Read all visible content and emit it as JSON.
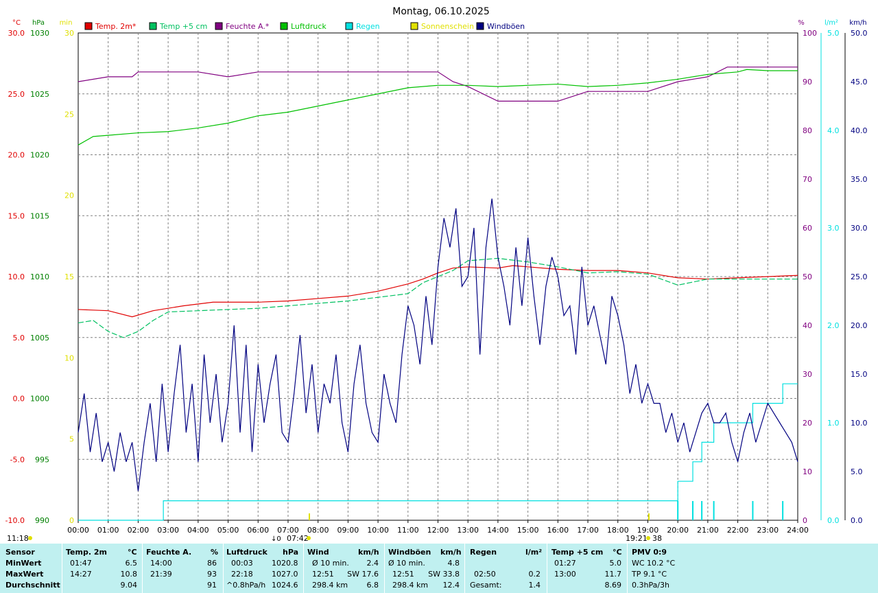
{
  "chart_data": {
    "type": "line",
    "title": "Montag, 06.10.2025",
    "x_ticks": [
      "00:00",
      "01:00",
      "02:00",
      "03:00",
      "04:00",
      "05:00",
      "06:00",
      "07:00",
      "08:00",
      "09:00",
      "10:00",
      "11:00",
      "12:00",
      "13:00",
      "14:00",
      "15:00",
      "16:00",
      "17:00",
      "18:00",
      "19:00",
      "20:00",
      "21:00",
      "22:00",
      "23:00",
      "24:00"
    ],
    "axes": {
      "temp": {
        "unit": "°C",
        "ticks": [
          "30.0",
          "25.0",
          "20.0",
          "15.0",
          "10.0",
          "5.0",
          "0.0",
          "-5.0",
          "-10.0"
        ],
        "ylim": [
          -10,
          30
        ],
        "color": "#e00000"
      },
      "pressure": {
        "unit": "hPa",
        "ticks": [
          "1030",
          "1025",
          "1020",
          "1015",
          "1010",
          "1005",
          "1000",
          "995",
          "990"
        ],
        "ylim": [
          990,
          1030
        ],
        "color": "#008000"
      },
      "sun": {
        "unit": "min",
        "ticks": [
          "30",
          "25",
          "20",
          "15",
          "10",
          "5",
          "0"
        ],
        "ylim": [
          0,
          30
        ],
        "color": "#e0e000"
      },
      "humidity": {
        "unit": "%",
        "ticks": [
          "100",
          "90",
          "80",
          "70",
          "60",
          "50",
          "40",
          "30",
          "20",
          "10",
          "0"
        ],
        "ylim": [
          0,
          100
        ],
        "color": "#800080"
      },
      "rain": {
        "unit": "l/m²",
        "ticks": [
          "5.0",
          "4.0",
          "3.0",
          "2.0",
          "1.0",
          "0.0"
        ],
        "ylim": [
          0,
          5
        ],
        "color": "#00e0e0"
      },
      "wind": {
        "unit": "km/h",
        "ticks": [
          "50.0",
          "45.0",
          "40.0",
          "35.0",
          "30.0",
          "25.0",
          "20.0",
          "15.0",
          "10.0",
          "5.0",
          "0.0"
        ],
        "ylim": [
          0,
          50
        ],
        "color": "#000080"
      }
    },
    "series": [
      {
        "name": "Temp. 2m*",
        "color": "#e00000",
        "axis": "temp",
        "x": [
          0,
          1,
          1.8,
          2.5,
          3.5,
          4.5,
          6,
          7,
          8,
          9,
          10,
          11,
          11.5,
          12,
          12.5,
          13,
          14,
          14.5,
          15,
          16,
          17,
          18,
          18.5,
          19,
          20,
          21,
          22,
          23,
          24
        ],
        "y": [
          7.3,
          7.2,
          6.7,
          7.2,
          7.6,
          7.9,
          7.9,
          8.0,
          8.2,
          8.4,
          8.8,
          9.4,
          9.8,
          10.3,
          10.7,
          10.8,
          10.7,
          10.9,
          10.8,
          10.6,
          10.5,
          10.5,
          10.4,
          10.3,
          9.9,
          9.8,
          9.9,
          10.0,
          10.1
        ]
      },
      {
        "name": "Temp +5 cm",
        "color": "#00c060",
        "axis": "temp",
        "x": [
          0,
          0.5,
          1,
          1.5,
          2,
          2.5,
          3,
          4,
          5,
          6,
          7,
          8,
          9,
          10,
          11,
          11.5,
          12,
          12.5,
          13,
          14,
          15,
          16,
          17,
          18,
          19,
          20,
          21,
          22,
          23,
          24
        ],
        "y": [
          6.2,
          6.4,
          5.5,
          5.0,
          5.5,
          6.4,
          7.1,
          7.2,
          7.3,
          7.4,
          7.6,
          7.8,
          8.0,
          8.3,
          8.6,
          9.5,
          10.0,
          10.5,
          11.3,
          11.5,
          11.2,
          10.8,
          10.3,
          10.4,
          10.2,
          9.3,
          9.8,
          9.8,
          9.8,
          9.8
        ]
      },
      {
        "name": "Feuchte A.*",
        "color": "#800080",
        "axis": "humidity",
        "x": [
          0,
          1,
          1.8,
          2,
          4,
          5,
          6,
          7,
          8,
          9,
          10,
          11,
          12,
          12.5,
          13,
          14,
          15,
          16,
          17,
          18,
          18.5,
          19,
          20,
          21,
          21.65,
          22,
          23,
          24
        ],
        "y": [
          90,
          91,
          91,
          92,
          92,
          91,
          92,
          92,
          92,
          92,
          92,
          92,
          92,
          90,
          89,
          86,
          86,
          86,
          88,
          88,
          88,
          88,
          90,
          91,
          93,
          93,
          93,
          93
        ]
      },
      {
        "name": "Luftdruck",
        "color": "#00c000",
        "axis": "pressure",
        "x": [
          0,
          0.5,
          1,
          2,
          3,
          4,
          5,
          6,
          7,
          8,
          9,
          10,
          11,
          12,
          13,
          14,
          15,
          16,
          17,
          18,
          19,
          20,
          21,
          22,
          22.3,
          23,
          24
        ],
        "y": [
          1020.8,
          1021.5,
          1021.6,
          1021.8,
          1021.9,
          1022.2,
          1022.6,
          1023.2,
          1023.5,
          1024.0,
          1024.5,
          1025.0,
          1025.5,
          1025.7,
          1025.7,
          1025.6,
          1025.7,
          1025.8,
          1025.6,
          1025.7,
          1025.9,
          1026.2,
          1026.6,
          1026.8,
          1027.0,
          1026.9,
          1026.9
        ]
      },
      {
        "name": "Regen",
        "color": "#00e0e0",
        "axis": "rain",
        "x": [
          0,
          2.83,
          2.84,
          19.99,
          20,
          20.5,
          20.8,
          21.2,
          22.5,
          23.5,
          24
        ],
        "y": [
          0,
          0,
          0.2,
          0.2,
          0.4,
          0.6,
          0.8,
          1.0,
          1.2,
          1.4,
          1.4
        ]
      },
      {
        "name": "Sonnenschein",
        "color": "#e0e000",
        "axis": "sun",
        "x": [],
        "y": []
      },
      {
        "name": "Windböen",
        "color": "#000080",
        "axis": "wind",
        "x": [
          0,
          0.2,
          0.4,
          0.6,
          0.8,
          1.0,
          1.2,
          1.4,
          1.6,
          1.8,
          2.0,
          2.2,
          2.4,
          2.6,
          2.8,
          3.0,
          3.2,
          3.4,
          3.6,
          3.8,
          4.0,
          4.2,
          4.4,
          4.6,
          4.8,
          5.0,
          5.2,
          5.4,
          5.6,
          5.8,
          6.0,
          6.2,
          6.4,
          6.6,
          6.8,
          7.0,
          7.2,
          7.4,
          7.6,
          7.8,
          8.0,
          8.2,
          8.4,
          8.6,
          8.8,
          9.0,
          9.2,
          9.4,
          9.6,
          9.8,
          10.0,
          10.2,
          10.4,
          10.6,
          10.8,
          11.0,
          11.2,
          11.4,
          11.6,
          11.8,
          12.0,
          12.2,
          12.4,
          12.6,
          12.8,
          13.0,
          13.2,
          13.4,
          13.6,
          13.8,
          14.0,
          14.2,
          14.4,
          14.6,
          14.8,
          15.0,
          15.2,
          15.4,
          15.6,
          15.8,
          16.0,
          16.2,
          16.4,
          16.6,
          16.8,
          17.0,
          17.2,
          17.4,
          17.6,
          17.8,
          18.0,
          18.2,
          18.4,
          18.6,
          18.8,
          19.0,
          19.2,
          19.4,
          19.6,
          19.8,
          20.0,
          20.2,
          20.4,
          20.6,
          20.8,
          21.0,
          21.2,
          21.4,
          21.6,
          21.8,
          22.0,
          22.2,
          22.4,
          22.6,
          22.8,
          23.0,
          23.2,
          23.4,
          23.6,
          23.8,
          24.0
        ],
        "y": [
          9,
          13,
          7,
          11,
          6,
          8,
          5,
          9,
          6,
          8,
          3,
          8,
          12,
          6,
          14,
          7,
          13,
          18,
          9,
          14,
          6,
          17,
          10,
          15,
          8,
          12,
          20,
          9,
          18,
          7,
          16,
          10,
          14,
          17,
          9,
          8,
          13,
          19,
          11,
          16,
          9,
          14,
          12,
          17,
          10,
          7,
          14,
          18,
          12,
          9,
          8,
          15,
          12,
          10,
          17,
          22,
          20,
          16,
          23,
          18,
          26,
          31,
          28,
          32,
          24,
          25,
          30,
          17,
          28,
          33,
          27,
          24,
          20,
          28,
          22,
          29,
          23,
          18,
          24,
          27,
          25,
          21,
          22,
          17,
          26,
          20,
          22,
          19,
          16,
          23,
          21,
          18,
          13,
          16,
          12,
          14,
          12,
          12,
          9,
          11,
          8,
          10,
          7,
          9,
          11,
          12,
          10,
          10,
          11,
          8,
          6,
          9,
          11,
          8,
          10,
          12,
          11,
          10,
          9,
          8,
          6
        ]
      }
    ],
    "markers": {
      "sunrise_label": "07:42",
      "sunrise_arrow": "↓0",
      "sunset_label": "19:21",
      "sunset_value": "38",
      "corner_time": "11:18"
    }
  },
  "table": {
    "headers": {
      "sensor": "Sensor",
      "temp2m": "Temp. 2m",
      "temp2m_unit": "°C",
      "hum": "Feuchte A.",
      "hum_unit": "%",
      "press": "Luftdruck",
      "press_unit": "hPa",
      "wind": "Wind",
      "wind_unit": "km/h",
      "gust": "Windböen",
      "gust_unit": "km/h",
      "rain": "Regen",
      "rain_unit": "l/m²",
      "temp5": "Temp +5 cm",
      "temp5_unit": "°C",
      "pmv": "PMV 0:9"
    },
    "rows": {
      "min_label": "MinWert",
      "max_label": "MaxWert",
      "avg_label": "Durchschnitt",
      "temp2m_min_time": "01:47",
      "temp2m_min": "6.5",
      "temp2m_max_time": "14:27",
      "temp2m_max": "10.8",
      "temp2m_avg": "9.04",
      "hum_min_time": "14:00",
      "hum_min": "86",
      "hum_max_time": "21:39",
      "hum_max": "93",
      "hum_avg": "91",
      "press_min_time": "00:03",
      "press_min": "1020.8",
      "press_max_time": "22:18",
      "press_max": "1027.0",
      "press_trend": "^0.8hPa/h",
      "press_avg": "1024.6",
      "wind_min_label": "Ø 10 min.",
      "wind_min": "2.4",
      "wind_max_time": "12:51",
      "wind_max_dir": "SW 17.6",
      "wind_dist": "298.4 km",
      "wind_avg": "6.8",
      "gust_min_label": "Ø 10 min.",
      "gust_min": "4.8",
      "gust_max_time": "12:51",
      "gust_max_dir": "SW 33.8",
      "gust_dist": "298.4 km",
      "gust_avg": "12.4",
      "rain_max_time": "02:50",
      "rain_max": "0.2",
      "rain_total_label": "Gesamt:",
      "rain_total": "1.4",
      "temp5_min_time": "01:27",
      "temp5_min": "5.0",
      "temp5_max_time": "13:00",
      "temp5_max": "11.7",
      "temp5_avg": "8.69",
      "pmv_min": "WC 10.2 °C",
      "pmv_max": "TP 9.1 °C",
      "pmv_avg": "0.3hPa/3h"
    }
  }
}
